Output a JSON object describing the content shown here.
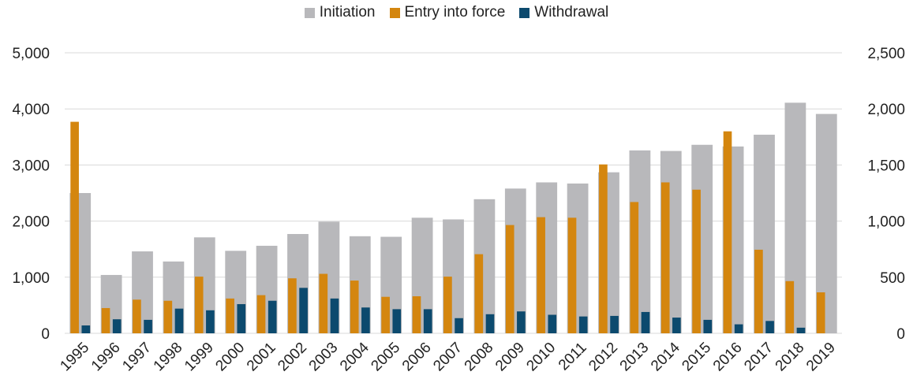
{
  "colors": {
    "initiation": "#b8b8bb",
    "entry": "#d4860f",
    "withdrawal": "#0c4a6e",
    "grid": "#d9d9d9"
  },
  "chart_data": {
    "type": "bar",
    "legend_position": "top",
    "categories": [
      "1995",
      "1996",
      "1997",
      "1998",
      "1999",
      "2000",
      "2001",
      "2002",
      "2003",
      "2004",
      "2005",
      "2006",
      "2007",
      "2008",
      "2009",
      "2010",
      "2011",
      "2012",
      "2013",
      "2014",
      "2015",
      "2016",
      "2017",
      "2018",
      "2019"
    ],
    "series": [
      {
        "name": "Initiation",
        "axis": "left",
        "values": [
          2500,
          1040,
          1460,
          1280,
          1710,
          1470,
          1560,
          1770,
          1990,
          1730,
          1720,
          2060,
          2030,
          2390,
          2580,
          2690,
          2670,
          2870,
          3260,
          3250,
          3360,
          3330,
          3540,
          4110,
          3910
        ]
      },
      {
        "name": "Entry into force",
        "axis": "right",
        "values": [
          1885,
          225,
          300,
          290,
          505,
          310,
          340,
          490,
          530,
          470,
          325,
          330,
          505,
          705,
          965,
          1035,
          1030,
          1505,
          1170,
          1345,
          1280,
          1800,
          745,
          465,
          365
        ]
      },
      {
        "name": "Withdrawal",
        "axis": "left",
        "values": [
          140,
          250,
          240,
          440,
          410,
          520,
          580,
          810,
          620,
          460,
          430,
          430,
          270,
          340,
          390,
          330,
          300,
          310,
          380,
          280,
          240,
          160,
          220,
          100,
          0
        ]
      }
    ],
    "ylim_left": [
      0,
      5000
    ],
    "ylim_right": [
      0,
      2500
    ],
    "yticks_left": [
      "0",
      "1,000",
      "2,000",
      "3,000",
      "4,000",
      "5,000"
    ],
    "yticks_right": [
      "0",
      "500",
      "1,000",
      "1,500",
      "2,000",
      "2,500"
    ],
    "grid": true
  }
}
